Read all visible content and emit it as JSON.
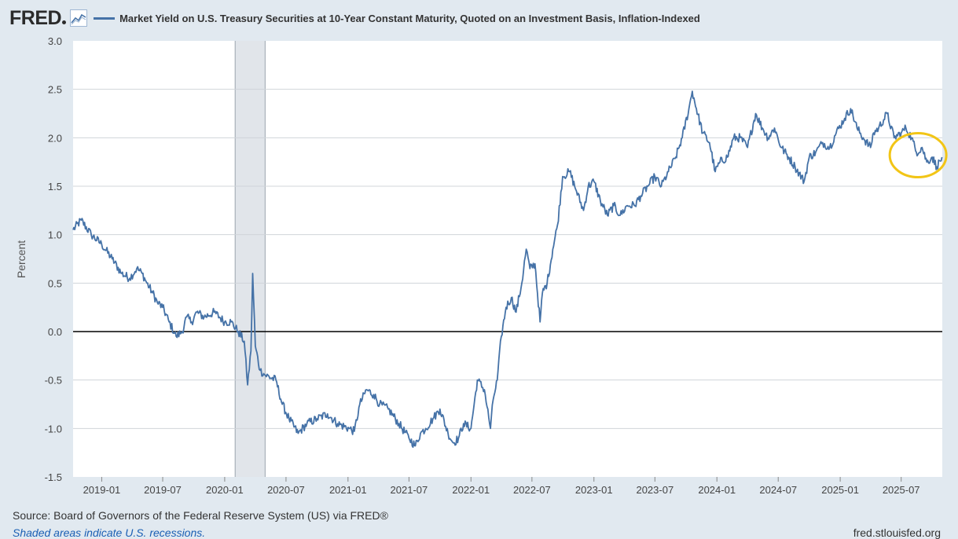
{
  "header": {
    "logo": "FRED",
    "series_color": "#4572a7",
    "title": "Market Yield on U.S. Treasury Securities at 10-Year Constant Maturity, Quoted on an Investment Basis, Inflation-Indexed"
  },
  "footer": {
    "source": "Source: Board of Governors of the Federal Reserve System (US) via FRED®",
    "note": "Shaded areas indicate U.S. recessions.",
    "site": "fred.stlouisfed.org"
  },
  "chart_data": {
    "type": "line",
    "title": "Market Yield on U.S. Treasury Securities at 10-Year Constant Maturity, Quoted on an Investment Basis, Inflation-Indexed",
    "ylabel": "Percent",
    "ylim": [
      -1.5,
      3.0
    ],
    "yticks": [
      "3.0",
      "2.5",
      "2.0",
      "1.5",
      "1.0",
      "0.5",
      "0.0",
      "-0.5",
      "-1.0",
      "-1.5"
    ],
    "xlim": [
      "2018-10-08",
      "2025-10-31"
    ],
    "xticks": [
      "2019-01",
      "2019-07",
      "2020-01",
      "2020-07",
      "2021-01",
      "2021-07",
      "2022-01",
      "2022-07",
      "2023-01",
      "2023-07",
      "2024-01",
      "2024-07",
      "2025-01",
      "2025-07"
    ],
    "grid": true,
    "zero_line": true,
    "recession_shading": [
      [
        "2020-02-01",
        "2020-04-30"
      ]
    ],
    "highlight": {
      "shape": "circle",
      "color": "#f2c516",
      "center": [
        "2025-08-20",
        1.82
      ]
    },
    "colors": {
      "line": "#4572a7",
      "recession": "#e1e5ea",
      "highlight": "#f2c516"
    },
    "series": [
      {
        "x": [
          "2018-10-08",
          "2018-11-01",
          "2018-12-01",
          "2019-01-01",
          "2019-02-01",
          "2019-03-01",
          "2019-03-25",
          "2019-04-15",
          "2019-05-01",
          "2019-05-15",
          "2019-06-01",
          "2019-06-15",
          "2019-07-01",
          "2019-07-20",
          "2019-08-10",
          "2019-08-28",
          "2019-09-10",
          "2019-09-25",
          "2019-10-10",
          "2019-11-01",
          "2019-12-01",
          "2020-01-01",
          "2020-01-20",
          "2020-02-10",
          "2020-02-28",
          "2020-03-09",
          "2020-03-19",
          "2020-03-24",
          "2020-04-01",
          "2020-04-15",
          "2020-05-01",
          "2020-06-01",
          "2020-06-20",
          "2020-07-10",
          "2020-08-06",
          "2020-09-01",
          "2020-10-01",
          "2020-11-01",
          "2020-12-01",
          "2021-01-04",
          "2021-01-20",
          "2021-02-05",
          "2021-02-25",
          "2021-03-18",
          "2021-04-05",
          "2021-05-01",
          "2021-06-01",
          "2021-07-01",
          "2021-07-20",
          "2021-08-04",
          "2021-08-20",
          "2021-09-10",
          "2021-10-01",
          "2021-10-25",
          "2021-11-10",
          "2021-11-25",
          "2021-12-10",
          "2022-01-01",
          "2022-01-20",
          "2022-02-10",
          "2022-02-28",
          "2022-03-08",
          "2022-03-20",
          "2022-04-01",
          "2022-04-15",
          "2022-05-01",
          "2022-05-15",
          "2022-06-01",
          "2022-06-14",
          "2022-06-25",
          "2022-07-10",
          "2022-07-25",
          "2022-08-01",
          "2022-08-15",
          "2022-09-01",
          "2022-09-15",
          "2022-09-30",
          "2022-10-21",
          "2022-11-10",
          "2022-12-01",
          "2022-12-15",
          "2023-01-01",
          "2023-01-20",
          "2023-02-10",
          "2023-03-01",
          "2023-03-20",
          "2023-04-10",
          "2023-05-01",
          "2023-05-20",
          "2023-06-10",
          "2023-07-01",
          "2023-07-20",
          "2023-08-10",
          "2023-09-01",
          "2023-09-20",
          "2023-10-10",
          "2023-10-20",
          "2023-11-01",
          "2023-11-20",
          "2023-12-10",
          "2023-12-27",
          "2024-01-10",
          "2024-02-01",
          "2024-02-20",
          "2024-03-10",
          "2024-04-01",
          "2024-04-25",
          "2024-05-15",
          "2024-06-01",
          "2024-06-20",
          "2024-07-10",
          "2024-08-01",
          "2024-08-20",
          "2024-09-16",
          "2024-10-01",
          "2024-10-20",
          "2024-11-10",
          "2024-12-01",
          "2024-12-20",
          "2025-01-14",
          "2025-02-01",
          "2025-02-20",
          "2025-03-10",
          "2025-04-01",
          "2025-04-10",
          "2025-04-25",
          "2025-05-20",
          "2025-06-10",
          "2025-07-01",
          "2025-07-15",
          "2025-08-01",
          "2025-08-15",
          "2025-09-01",
          "2025-09-15",
          "2025-10-01",
          "2025-10-15",
          "2025-10-30"
        ],
        "y": [
          1.05,
          1.15,
          1.0,
          0.9,
          0.75,
          0.6,
          0.55,
          0.65,
          0.6,
          0.5,
          0.4,
          0.3,
          0.25,
          0.1,
          -0.05,
          0.0,
          0.15,
          0.1,
          0.2,
          0.15,
          0.2,
          0.1,
          0.1,
          0.0,
          -0.1,
          -0.55,
          -0.2,
          0.6,
          -0.15,
          -0.4,
          -0.45,
          -0.5,
          -0.75,
          -0.9,
          -1.05,
          -0.95,
          -0.9,
          -0.85,
          -0.95,
          -1.0,
          -1.03,
          -0.75,
          -0.6,
          -0.65,
          -0.75,
          -0.8,
          -0.95,
          -1.1,
          -1.18,
          -1.05,
          -1.0,
          -0.9,
          -0.8,
          -1.05,
          -1.15,
          -1.1,
          -0.95,
          -1.0,
          -0.5,
          -0.6,
          -1.0,
          -0.7,
          -0.5,
          -0.05,
          0.25,
          0.35,
          0.2,
          0.5,
          0.85,
          0.65,
          0.7,
          0.1,
          0.4,
          0.5,
          0.85,
          1.1,
          1.6,
          1.65,
          1.45,
          1.25,
          1.5,
          1.55,
          1.35,
          1.2,
          1.3,
          1.2,
          1.3,
          1.3,
          1.4,
          1.5,
          1.6,
          1.5,
          1.65,
          1.8,
          2.0,
          2.3,
          2.48,
          2.3,
          2.05,
          1.95,
          1.65,
          1.75,
          1.8,
          2.0,
          2.0,
          1.9,
          2.25,
          2.1,
          2.0,
          2.1,
          1.9,
          1.8,
          1.7,
          1.55,
          1.8,
          1.85,
          1.95,
          1.9,
          2.05,
          2.2,
          2.3,
          2.1,
          2.0,
          1.9,
          2.05,
          2.1,
          2.25,
          2.0,
          2.05,
          2.1,
          2.0,
          1.85,
          1.9,
          1.75,
          1.8,
          1.7,
          1.8
        ]
      }
    ]
  }
}
